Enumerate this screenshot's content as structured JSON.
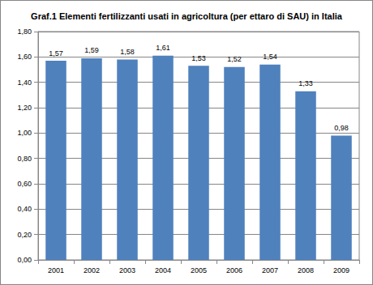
{
  "chart_data": {
    "type": "bar",
    "title": "Graf.1 Elementi fertilizzanti usati in agricoltura (per ettaro di SAU) in Italia",
    "categories": [
      "2001",
      "2002",
      "2003",
      "2004",
      "2005",
      "2006",
      "2007",
      "2008",
      "2009"
    ],
    "values": [
      1.57,
      1.59,
      1.58,
      1.61,
      1.53,
      1.52,
      1.54,
      1.33,
      0.98
    ],
    "value_labels": [
      "1,57",
      "1,59",
      "1,58",
      "1,61",
      "1,53",
      "1,52",
      "1,54",
      "1,33",
      "0,98"
    ],
    "color": "#4f81bd",
    "ylim": [
      0,
      1.8
    ],
    "yticks": [
      {
        "value": 0,
        "label": "0,00"
      },
      {
        "value": 0.2,
        "label": "0,20"
      },
      {
        "value": 0.4,
        "label": "0,40"
      },
      {
        "value": 0.6,
        "label": "0,60"
      },
      {
        "value": 0.8,
        "label": "0,80"
      },
      {
        "value": 1.0,
        "label": "1,00"
      },
      {
        "value": 1.2,
        "label": "1,20"
      },
      {
        "value": 1.4,
        "label": "1,40"
      },
      {
        "value": 1.6,
        "label": "1,60"
      },
      {
        "value": 1.8,
        "label": "1,80"
      }
    ],
    "grid": true,
    "data_labels": true
  }
}
